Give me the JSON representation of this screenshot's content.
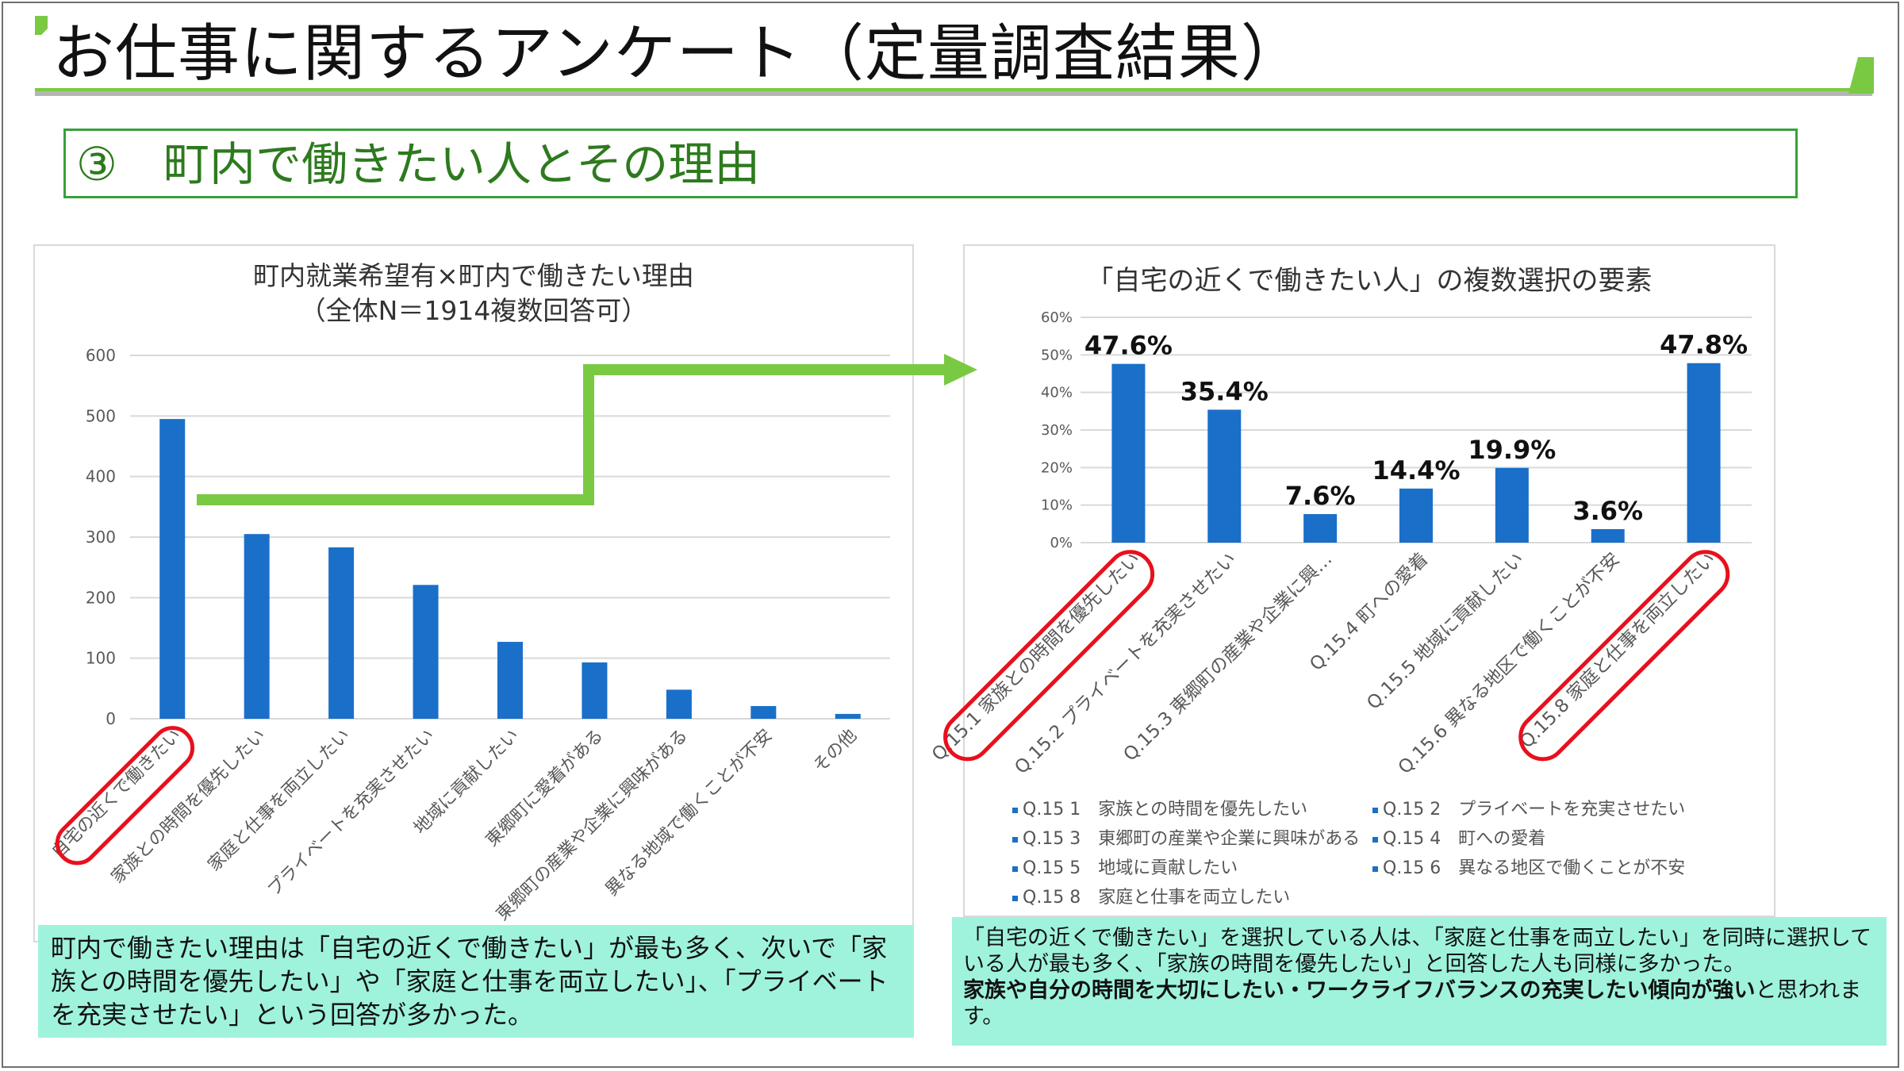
{
  "page": {
    "title": "お仕事に関するアンケート（定量調査結果）",
    "subtitle": "③　町内で働きたい人とその理由"
  },
  "colors": {
    "bar": "#1a6fc9",
    "accent_green": "#7ac943",
    "highlight_red": "#e8101c",
    "note_bg": "#9ff3dc",
    "title_green": "#2d7a1e"
  },
  "chart_data": [
    {
      "type": "bar",
      "title": "町内就業希望有×町内で働きたい理由",
      "subtitle": "（全体N＝1914複数回答可）",
      "categories": [
        "自宅の近くで働きたい",
        "家族との時間を優先したい",
        "家庭と仕事を両立したい",
        "プライベートを充実させたい",
        "地域に貢献したい",
        "東郷町に愛着がある",
        "東郷町の産業や企業に興味がある",
        "異なる地域で働くことが不安",
        "その他"
      ],
      "values": [
        495,
        305,
        283,
        221,
        127,
        93,
        48,
        21,
        8
      ],
      "ylim": [
        0,
        600
      ],
      "yticks": [
        "0",
        "100",
        "200",
        "300",
        "400",
        "500",
        "600"
      ],
      "grid": true,
      "highlighted": [
        "自宅の近くで働きたい"
      ]
    },
    {
      "type": "bar",
      "title": "「自宅の近くで働きたい人」の複数選択の要素",
      "categories": [
        "Q.15.1 家族との時間を優先したい",
        "Q.15.2 プライベートを充実させたい",
        "Q.15.3 東郷町の産業や企業に興…",
        "Q.15.4 町への愛着",
        "Q.15.5 地域に貢献したい",
        "Q.15.6 異なる地区で働くことが不安",
        "Q.15.8 家庭と仕事を両立したい"
      ],
      "values": [
        47.6,
        35.4,
        7.6,
        14.4,
        19.9,
        3.6,
        47.8
      ],
      "data_labels": [
        "47.6%",
        "35.4%",
        "7.6%",
        "14.4%",
        "19.9%",
        "3.6%",
        "47.8%"
      ],
      "ylim": [
        0,
        60
      ],
      "yticks": [
        "0%",
        "10%",
        "20%",
        "30%",
        "40%",
        "50%",
        "60%"
      ],
      "grid": true,
      "legend": [
        "Q.15 1　家族との時間を優先したい",
        "Q.15 2　プライベートを充実させたい",
        "Q.15 3　東郷町の産業や企業に興味がある",
        "Q.15 4　町への愛着",
        "Q.15 5　地域に貢献したい",
        "Q.15 6　異なる地区で働くことが不安",
        "Q.15 8　家庭と仕事を両立したい"
      ],
      "highlighted": [
        "Q.15.1 家族との時間を優先したい",
        "Q.15.8 家庭と仕事を両立したい"
      ]
    }
  ],
  "notes": {
    "left": "町内で働きたい理由は「自宅の近くで働きたい」が最も多く、次いで「家族との時間を優先したい」や「家庭と仕事を両立したい」、「プライベートを充実させたい」という回答が多かった。",
    "right_line1": "「自宅の近くで働きたい」を選択している人は、「家庭と仕事を両立したい」を同時に選択している人が最も多く、「家族の時間を優先したい」と回答した人も同様に多かった。",
    "right_bold": "家族や自分の時間を大切にしたい・ワークライフバランスの充実したい傾向が強い",
    "right_tail": "と思われます。"
  }
}
